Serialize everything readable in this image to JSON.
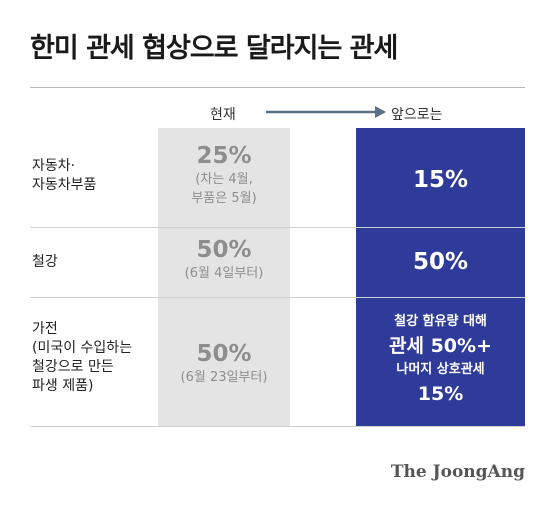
{
  "title": "한미 관세 협상으로 달라지는 관세",
  "headers": {
    "current": "현재",
    "future": "앞으로는"
  },
  "rows": [
    {
      "label": [
        "자동차·",
        "자동차부품"
      ],
      "current": {
        "value": "25%",
        "notes": [
          "(차는 4월,",
          "부품은 5월)"
        ]
      },
      "future": {
        "lines": [
          "15%"
        ]
      }
    },
    {
      "label": [
        "철강"
      ],
      "current": {
        "value": "50%",
        "notes": [
          "(6월 4일부터)"
        ]
      },
      "future": {
        "lines": [
          "50%"
        ]
      }
    },
    {
      "label": [
        "가전",
        "(미국이 수입하는",
        "철강으로 만든",
        "파생 제품)"
      ],
      "current": {
        "value": "50%",
        "notes": [
          "(6월 23일부터)"
        ]
      },
      "future": {
        "lines": [
          "철강 함유량 대해",
          "관세 50%+",
          "나머지 상호관세",
          "15%"
        ]
      }
    }
  ],
  "logo": "The JoongAng",
  "colors": {
    "accent": "#2e3b98",
    "current_bg": "#e4e4e4",
    "arrow": "#5b7185"
  }
}
